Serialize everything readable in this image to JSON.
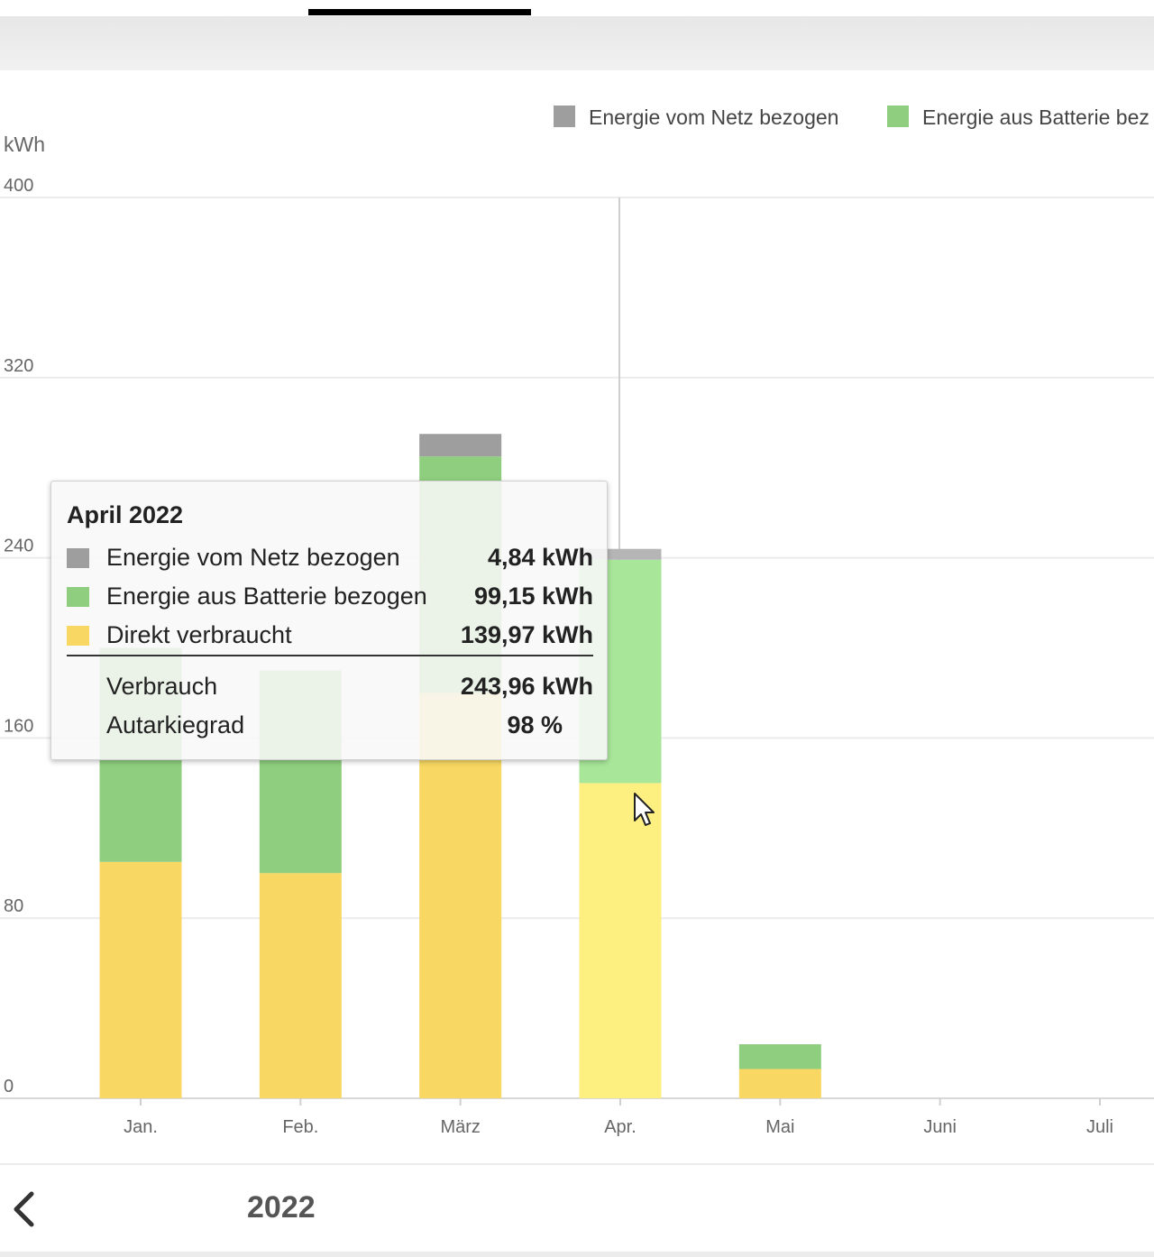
{
  "header": {
    "active_tab_indicator": true
  },
  "chart_data": {
    "type": "bar",
    "stacked": true,
    "ylabel": "kWh",
    "ylim": [
      0,
      400
    ],
    "yticks": [
      "0",
      "80",
      "160",
      "240",
      "320",
      "400"
    ],
    "categories": [
      "Jan.",
      "Feb.",
      "März",
      "Apr.",
      "Mai",
      "Juni",
      "Juli"
    ],
    "series": [
      {
        "name": "Direkt verbraucht",
        "color": "#f8d862",
        "highlight_color": "#fdf081",
        "values": [
          105,
          100,
          180,
          139.97,
          13,
          0,
          0
        ]
      },
      {
        "name": "Energie aus Batterie bezogen",
        "color": "#8fce7e",
        "highlight_color": "#a8e699",
        "values": [
          95,
          90,
          105,
          99.15,
          11,
          0,
          0
        ]
      },
      {
        "name": "Energie vom Netz bezogen",
        "color": "#9e9e9e",
        "highlight_color": "#b5b5b5",
        "values": [
          0,
          0,
          10,
          4.84,
          0,
          0,
          0
        ]
      }
    ],
    "legend": [
      {
        "name": "Energie vom Netz bezogen",
        "color": "#9e9e9e"
      },
      {
        "name": "Energie aus Batterie bez",
        "color": "#8fce7e"
      }
    ],
    "legend_position": "top-right",
    "highlighted_category": "Apr.",
    "grid": true
  },
  "tooltip": {
    "title": "April 2022",
    "rows": [
      {
        "label": "Energie vom Netz bezogen",
        "value": "4,84 kWh",
        "color": "#9e9e9e"
      },
      {
        "label": "Energie aus Batterie bezogen",
        "value": "99,15 kWh",
        "color": "#8fce7e"
      },
      {
        "label": "Direkt verbraucht",
        "value": "139,97 kWh",
        "color": "#f8d862"
      }
    ],
    "totals": [
      {
        "label": "Verbrauch",
        "value": "243,96 kWh"
      },
      {
        "label": "Autarkiegrad",
        "value": "98 %"
      }
    ]
  },
  "footer": {
    "back_icon": "chevron-left-icon",
    "year": "2022"
  }
}
